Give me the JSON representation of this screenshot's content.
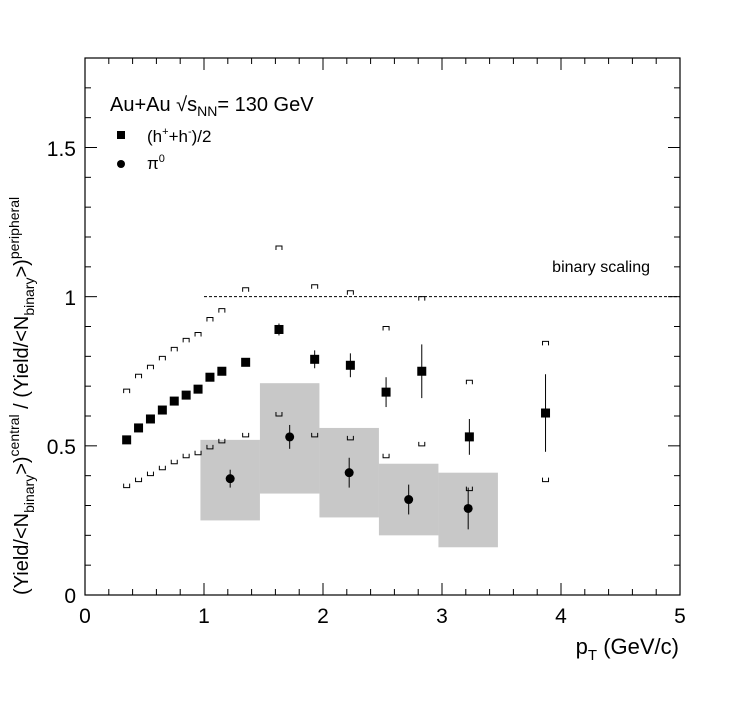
{
  "chart_data": {
    "type": "scatter",
    "title": "Au+Au √s_NN= 130 GeV",
    "xlabel": "p_T (GeV/c)",
    "ylabel": "(Yield/<N_binary>)^central / (Yield/<N_binary>)^peripheral",
    "xlim": [
      0,
      5
    ],
    "ylim": [
      0,
      1.8
    ],
    "x_ticks": [
      "0",
      "1",
      "2",
      "3",
      "4",
      "5"
    ],
    "y_ticks": [
      "0",
      "0.5",
      "1",
      "1.5"
    ],
    "grid": false,
    "legend_position": "top-left",
    "legend": [
      {
        "label": "(h⁺+h⁻)/2",
        "marker": "square"
      },
      {
        "label": "π⁰",
        "marker": "circle"
      }
    ],
    "reference_line": {
      "y": 1.0,
      "x_range": [
        1.0,
        5.0
      ],
      "label": "binary scaling",
      "style": "dashed"
    },
    "series": [
      {
        "name": "(h⁺+h⁻)/2",
        "marker": "square",
        "points": [
          {
            "x": 0.35,
            "y": 0.52
          },
          {
            "x": 0.45,
            "y": 0.56
          },
          {
            "x": 0.55,
            "y": 0.59
          },
          {
            "x": 0.65,
            "y": 0.62
          },
          {
            "x": 0.75,
            "y": 0.65
          },
          {
            "x": 0.85,
            "y": 0.67
          },
          {
            "x": 0.95,
            "y": 0.69
          },
          {
            "x": 1.05,
            "y": 0.73
          },
          {
            "x": 1.15,
            "y": 0.75
          },
          {
            "x": 1.35,
            "y": 0.78
          },
          {
            "x": 1.63,
            "y": 0.89,
            "err": 0.02
          },
          {
            "x": 1.93,
            "y": 0.79,
            "err": 0.03
          },
          {
            "x": 2.23,
            "y": 0.77,
            "err": 0.04
          },
          {
            "x": 2.53,
            "y": 0.68,
            "err": 0.05
          },
          {
            "x": 2.83,
            "y": 0.75,
            "err": 0.09
          },
          {
            "x": 3.23,
            "y": 0.53,
            "err": 0.06
          },
          {
            "x": 3.87,
            "y": 0.61,
            "err": 0.13
          }
        ],
        "sys_upper": [
          0.69,
          0.74,
          0.77,
          0.8,
          0.83,
          0.86,
          0.88,
          0.93,
          0.96,
          1.03,
          1.17,
          1.04,
          1.02,
          0.9,
          1.0,
          0.72,
          0.85
        ],
        "sys_lower": [
          0.36,
          0.38,
          0.4,
          0.42,
          0.44,
          0.46,
          0.47,
          0.49,
          0.51,
          0.53,
          0.6,
          0.53,
          0.52,
          0.46,
          0.5,
          0.35,
          0.38
        ]
      },
      {
        "name": "π⁰",
        "marker": "circle",
        "points": [
          {
            "x": 1.22,
            "y": 0.39,
            "err": 0.03,
            "band": [
              0.25,
              0.52
            ],
            "bin": [
              0.97,
              1.47
            ]
          },
          {
            "x": 1.72,
            "y": 0.53,
            "err": 0.04,
            "band": [
              0.34,
              0.71
            ],
            "bin": [
              1.47,
              1.97
            ]
          },
          {
            "x": 2.22,
            "y": 0.41,
            "err": 0.05,
            "band": [
              0.26,
              0.56
            ],
            "bin": [
              1.97,
              2.47
            ]
          },
          {
            "x": 2.72,
            "y": 0.32,
            "err": 0.05,
            "band": [
              0.2,
              0.44
            ],
            "bin": [
              2.47,
              2.97
            ]
          },
          {
            "x": 3.22,
            "y": 0.29,
            "err": 0.07,
            "band": [
              0.16,
              0.41
            ],
            "bin": [
              2.97,
              3.47
            ]
          }
        ]
      }
    ]
  }
}
